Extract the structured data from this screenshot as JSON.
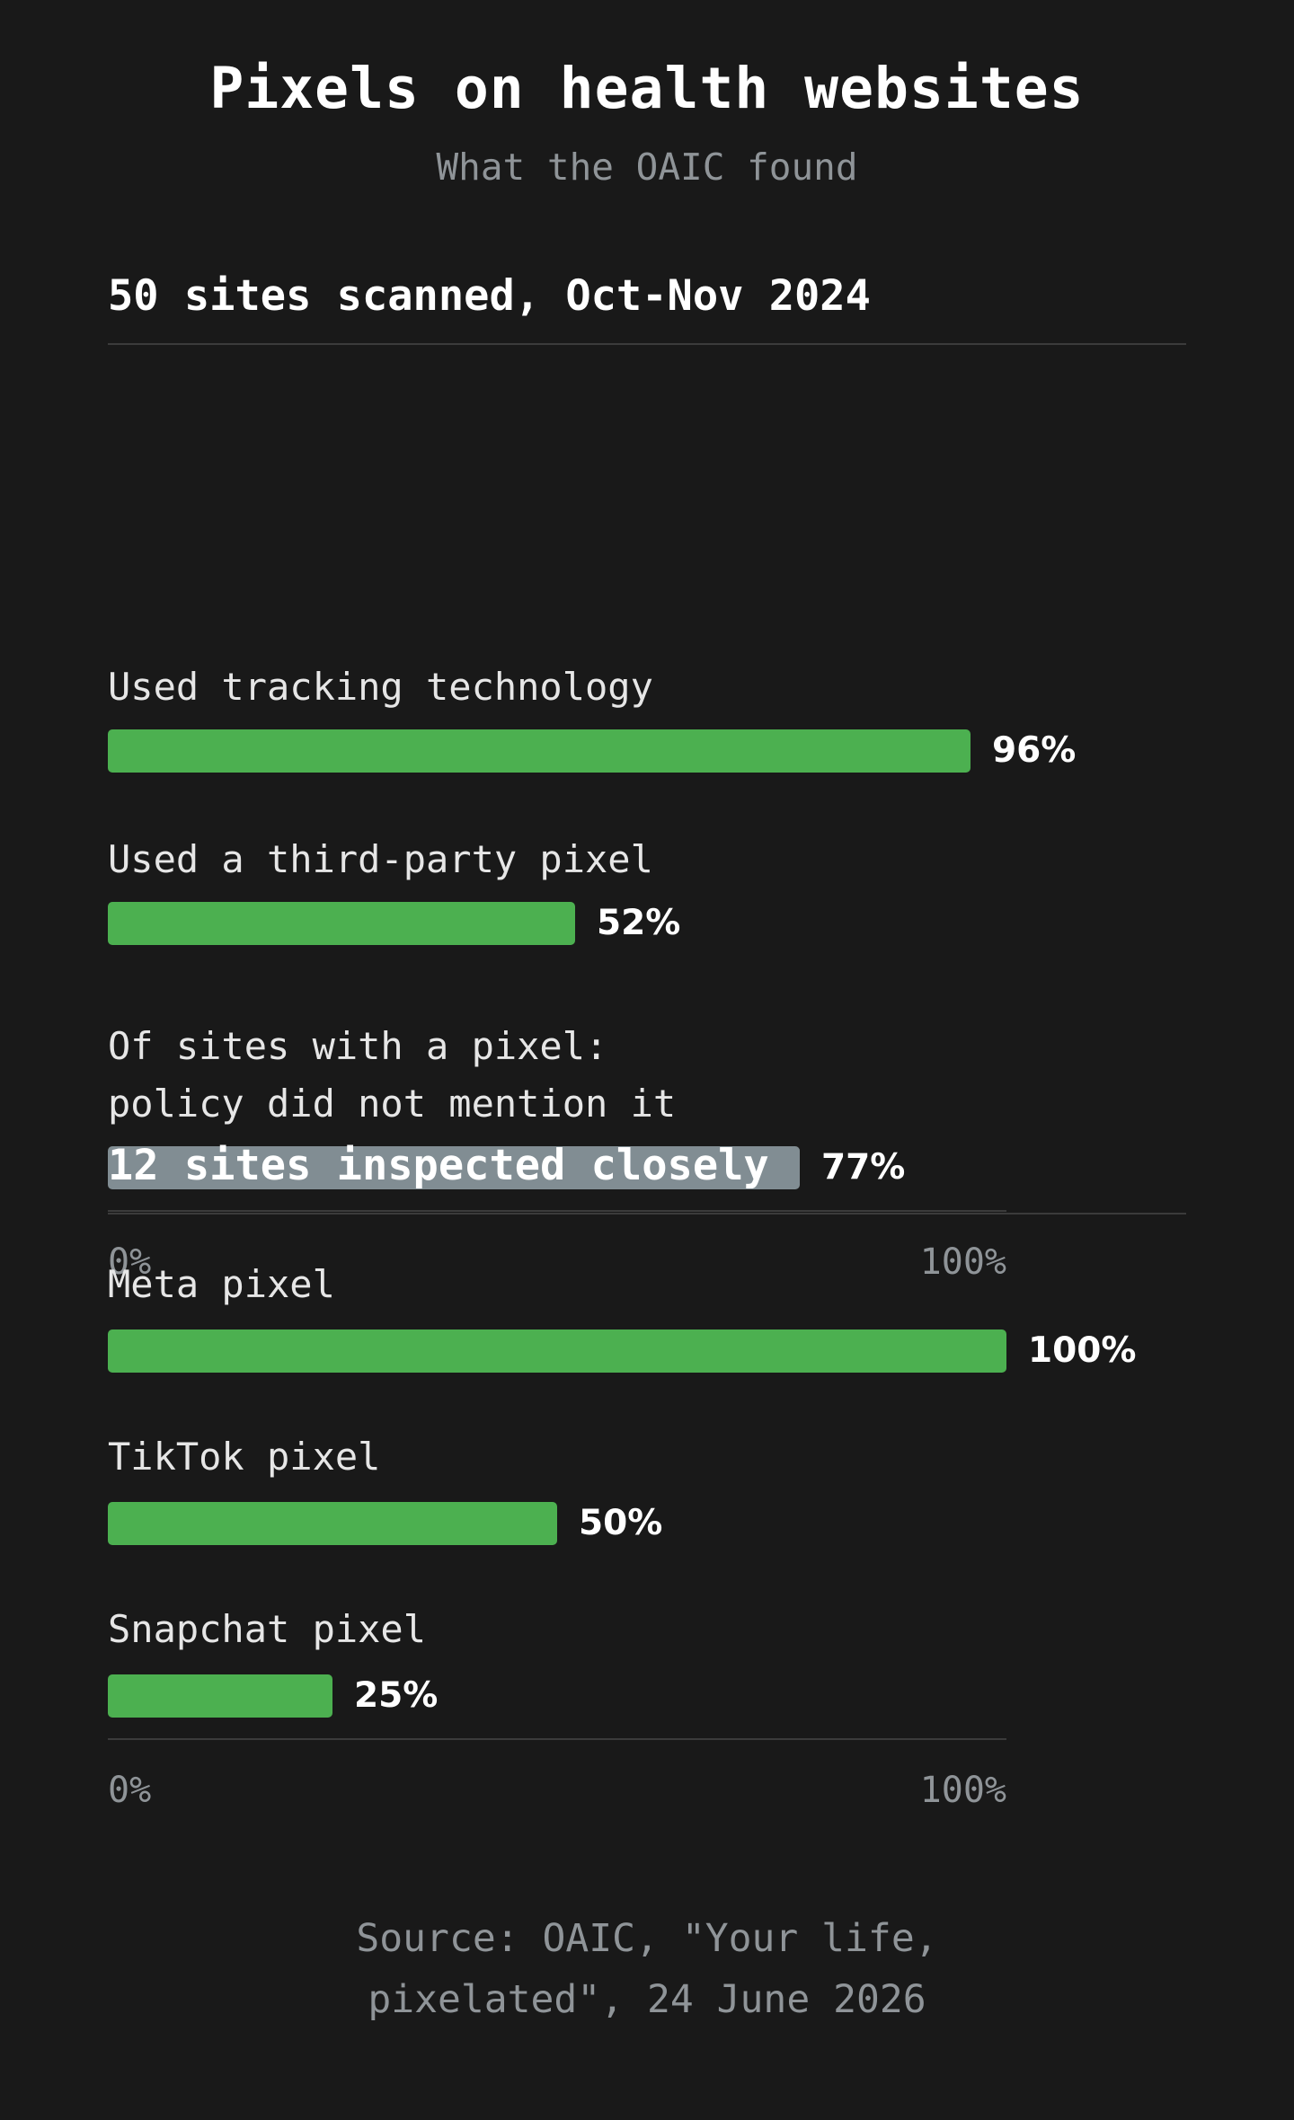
{
  "title": "Pixels on health websites",
  "subtitle": "What the OAIC found",
  "source_lines": [
    "Source: OAIC, \"Your life,",
    "pixelated\", 24 June 2026"
  ],
  "colors": {
    "background": "#191919",
    "green": "#4cb050",
    "grey": "#818d93"
  },
  "chart_data": [
    {
      "type": "bar",
      "orientation": "horizontal",
      "title": "50 sites scanned, Oct-Nov 2024",
      "xlim": [
        0,
        100
      ],
      "ticks": [
        "0%",
        "100%"
      ],
      "bars": [
        {
          "label": "Used tracking technology",
          "value": 96,
          "display": "96%",
          "color": "#4cb050"
        },
        {
          "label": "Used a third-party pixel",
          "value": 52,
          "display": "52%",
          "color": "#4cb050"
        },
        {
          "label": "Of sites with a pixel:\npolicy did not mention it",
          "value": 77,
          "display": "77%",
          "color": "#818d93"
        }
      ]
    },
    {
      "type": "bar",
      "orientation": "horizontal",
      "title": "12 sites inspected closely",
      "xlim": [
        0,
        100
      ],
      "ticks": [
        "0%",
        "100%"
      ],
      "bars": [
        {
          "label": "Meta pixel",
          "value": 100,
          "display": "100%",
          "color": "#4cb050"
        },
        {
          "label": "TikTok pixel",
          "value": 50,
          "display": "50%",
          "color": "#4cb050"
        },
        {
          "label": "Snapchat pixel",
          "value": 25,
          "display": "25%",
          "color": "#4cb050"
        }
      ]
    }
  ]
}
